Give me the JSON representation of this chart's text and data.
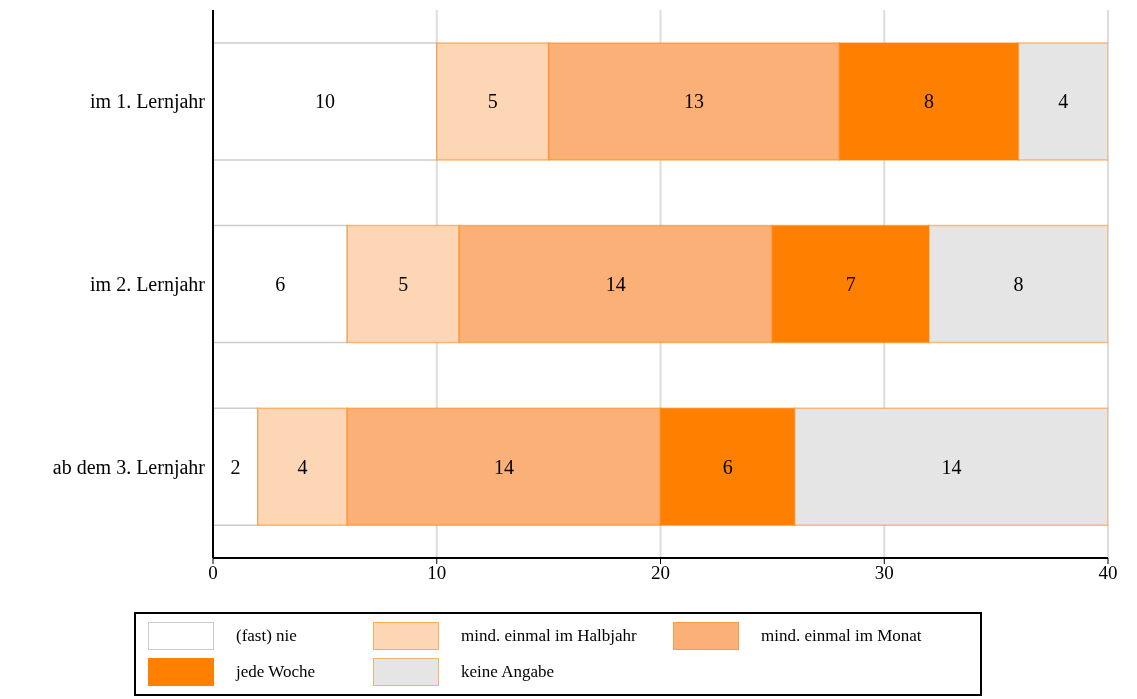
{
  "chart_data": {
    "type": "bar",
    "orientation": "horizontal",
    "stacked": true,
    "categories": [
      "im 1. Lernjahr",
      "im 2. Lernjahr",
      "ab dem 3. Lernjahr"
    ],
    "series": [
      {
        "name": "(fast) nie",
        "color": "#ffffff",
        "values": [
          10,
          6,
          2
        ]
      },
      {
        "name": "mind. einmal im Halbjahr",
        "color": "#fdd6b5",
        "values": [
          5,
          5,
          4
        ]
      },
      {
        "name": "mind. einmal im Monat",
        "color": "#fbb078",
        "values": [
          13,
          14,
          14
        ]
      },
      {
        "name": "jede Woche",
        "color": "#ff8000",
        "values": [
          8,
          7,
          6
        ]
      },
      {
        "name": "keine Angabe",
        "color": "#e5e5e5",
        "values": [
          4,
          8,
          14
        ]
      }
    ],
    "xlim": [
      0,
      40
    ],
    "xticks": [
      0,
      10,
      20,
      30,
      40
    ],
    "grid": "x",
    "legend": "bottom",
    "data_labels": true
  }
}
